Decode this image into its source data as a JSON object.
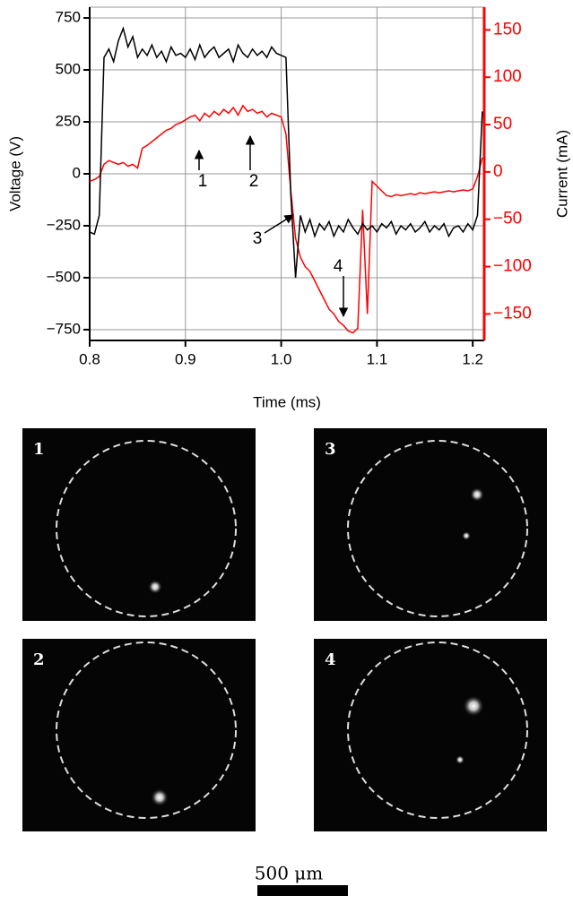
{
  "chart_data": {
    "type": "line",
    "x": [
      0.8,
      0.805,
      0.81,
      0.815,
      0.82,
      0.825,
      0.83,
      0.835,
      0.84,
      0.845,
      0.85,
      0.855,
      0.86,
      0.865,
      0.87,
      0.875,
      0.88,
      0.885,
      0.89,
      0.895,
      0.9,
      0.905,
      0.91,
      0.915,
      0.92,
      0.925,
      0.93,
      0.935,
      0.94,
      0.945,
      0.95,
      0.955,
      0.96,
      0.965,
      0.97,
      0.975,
      0.98,
      0.985,
      0.99,
      0.995,
      1.0,
      1.005,
      1.01,
      1.015,
      1.02,
      1.025,
      1.03,
      1.035,
      1.04,
      1.045,
      1.05,
      1.055,
      1.06,
      1.065,
      1.07,
      1.075,
      1.08,
      1.085,
      1.09,
      1.095,
      1.1,
      1.105,
      1.11,
      1.115,
      1.12,
      1.125,
      1.13,
      1.135,
      1.14,
      1.145,
      1.15,
      1.155,
      1.16,
      1.165,
      1.17,
      1.175,
      1.18,
      1.185,
      1.19,
      1.195,
      1.2,
      1.205,
      1.21
    ],
    "series": [
      {
        "name": "Voltage",
        "color": "#000000",
        "values": [
          -280,
          -290,
          -200,
          560,
          600,
          540,
          640,
          700,
          610,
          660,
          560,
          600,
          570,
          620,
          560,
          590,
          540,
          610,
          570,
          580,
          560,
          600,
          550,
          620,
          560,
          590,
          610,
          560,
          580,
          600,
          540,
          620,
          580,
          560,
          600,
          570,
          590,
          560,
          610,
          580,
          570,
          560,
          -100,
          -500,
          -200,
          -280,
          -220,
          -300,
          -240,
          -270,
          -230,
          -300,
          -250,
          -280,
          -220,
          -260,
          -290,
          -240,
          -270,
          -250,
          -280,
          -240,
          -260,
          -230,
          -290,
          -250,
          -270,
          -240,
          -280,
          -260,
          -230,
          -280,
          -250,
          -270,
          -240,
          -300,
          -260,
          -250,
          -280,
          -240,
          -270,
          -200,
          300
        ]
      },
      {
        "name": "Current",
        "color": "#ff0000",
        "axis": "y2",
        "values": [
          -10,
          -8,
          -5,
          8,
          12,
          10,
          8,
          10,
          6,
          8,
          4,
          25,
          28,
          32,
          36,
          40,
          44,
          46,
          50,
          52,
          55,
          58,
          60,
          54,
          62,
          58,
          64,
          60,
          66,
          62,
          68,
          60,
          70,
          64,
          66,
          62,
          64,
          58,
          62,
          60,
          58,
          40,
          -20,
          -70,
          -90,
          -100,
          -105,
          -115,
          -125,
          -135,
          -145,
          -150,
          -158,
          -162,
          -168,
          -170,
          -165,
          -40,
          -150,
          -10,
          -15,
          -20,
          -25,
          -26,
          -24,
          -25,
          -24,
          -23,
          -24,
          -22,
          -23,
          -22,
          -21,
          -22,
          -21,
          -20,
          -21,
          -20,
          -19,
          -20,
          -18,
          -5,
          15
        ]
      }
    ],
    "xlabel": "Time (ms)",
    "ylabel": "Voltage (V)",
    "y2label": "Current (mA)",
    "xlim": [
      0.8,
      1.212
    ],
    "xticks": [
      0.8,
      0.9,
      {
        "value": 1,
        "label": "1.0"
      },
      1.1,
      1.2
    ],
    "ylim": [
      -802,
      802
    ],
    "yticks": [
      {
        "value": -750,
        "label": "−750"
      },
      {
        "value": -500,
        "label": "−500"
      },
      {
        "value": -250,
        "label": "−250"
      },
      0,
      250,
      500,
      750
    ],
    "y2lim": [
      -178,
      174
    ],
    "y2ticks": [
      {
        "value": -150,
        "label": "−150"
      },
      {
        "value": -100,
        "label": "−100"
      },
      {
        "value": -50,
        "label": "−50"
      },
      0,
      50,
      100,
      150
    ],
    "grid": true,
    "annotations": [
      "1",
      "2",
      "3",
      "4"
    ]
  },
  "images": {
    "panels": [
      "1",
      "3",
      "2",
      "4"
    ],
    "scale_bar": "500 μm"
  }
}
